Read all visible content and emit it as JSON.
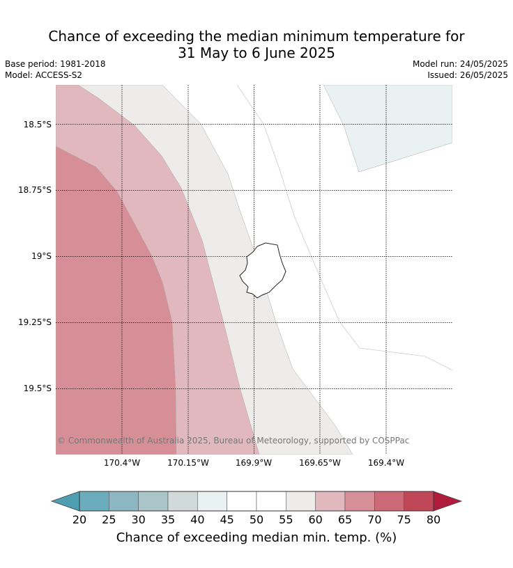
{
  "title": {
    "line1": "Chance of exceeding the median minimum temperature for",
    "line2": "31 May to 6 June 2025"
  },
  "meta": {
    "base_period": "Base period: 1981-2018",
    "model": "Model: ACCESS-S2",
    "model_run": "Model run: 24/05/2025",
    "issued": "Issued: 26/05/2025"
  },
  "map": {
    "lat_labels": [
      "18.5°S",
      "18.75°S",
      "19°S",
      "19.25°S",
      "19.5°S"
    ],
    "lon_labels": [
      "170.4°W",
      "170.15°W",
      "169.9°W",
      "169.65°W",
      "169.4°W"
    ],
    "copyright": "© Commonwealth of Australia 2025, Bureau of Meteorology, supported by COSPPac",
    "land_name_icon": "island-outline"
  },
  "colorbar": {
    "ticks": [
      "20",
      "25",
      "30",
      "35",
      "40",
      "45",
      "50",
      "55",
      "60",
      "65",
      "70",
      "75",
      "80"
    ],
    "colors": [
      "#6cadbd",
      "#8cb6c2",
      "#a9c5ca",
      "#d1d9da",
      "#eaf1f2",
      "#ffffff",
      "#ffffff",
      "#eeeceb",
      "#e1b8be",
      "#d68f97",
      "#cc6b77",
      "#c04757"
    ],
    "under_color": "#4e9fb1",
    "over_color": "#b01c3c",
    "label": "Chance of exceeding median min. temp. (%)"
  }
}
